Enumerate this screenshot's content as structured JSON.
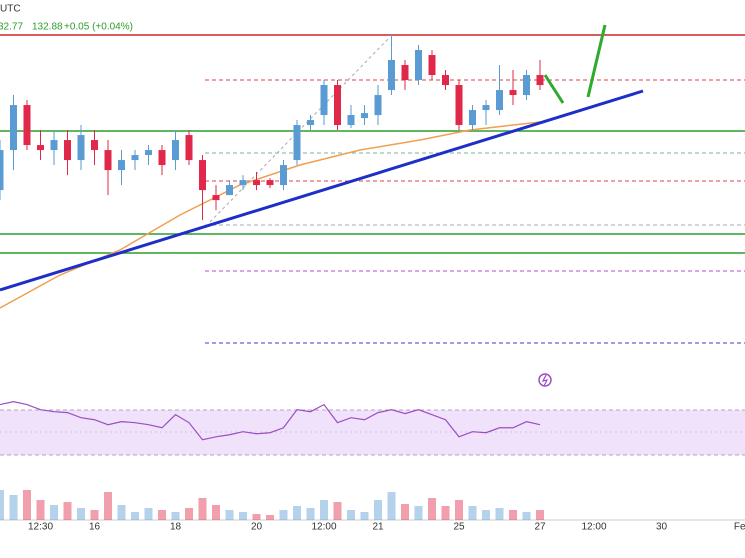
{
  "chart_data": {
    "type": "candlestick",
    "annotations": [
      "UTC",
      "32.77",
      "132.88",
      "+0.05 (+0.04%)"
    ],
    "categories": [
      null,
      null,
      null,
      "12:30",
      null,
      null,
      null,
      "16",
      null,
      null,
      null,
      null,
      null,
      "18",
      null,
      null,
      null,
      null,
      null,
      "20",
      null,
      null,
      null,
      null,
      "12:00",
      null,
      null,
      null,
      "21",
      null,
      null,
      null,
      null,
      null,
      "25",
      null,
      null,
      null,
      null,
      null,
      "27",
      null,
      null,
      null,
      "12:00",
      null,
      null,
      null,
      null,
      "30",
      null,
      null,
      null,
      null,
      null,
      "Feb"
    ],
    "open": [
      132.136,
      132.36,
      132.612,
      132.388,
      132.36,
      132.416,
      132.304,
      132.416,
      132.36,
      132.248,
      132.304,
      132.332,
      132.36,
      132.304,
      132.444,
      132.304,
      132.108,
      132.108,
      132.164,
      132.192,
      132.192,
      132.164,
      132.304,
      132.5,
      132.556,
      132.724,
      132.5,
      132.539,
      132.556,
      132.696,
      132.836,
      132.752,
      132.892,
      132.78,
      132.724,
      132.5,
      132.584,
      132.584,
      132.696,
      132.668,
      132.78,
      null,
      null,
      null,
      null,
      null,
      null,
      null,
      null,
      null,
      null,
      null,
      null,
      null,
      null,
      null
    ],
    "high": [
      132.416,
      132.668,
      132.64,
      132.472,
      132.472,
      132.472,
      132.5,
      132.472,
      132.416,
      132.36,
      132.36,
      132.388,
      132.388,
      132.472,
      132.472,
      132.332,
      132.164,
      132.192,
      132.22,
      132.237,
      132.203,
      132.304,
      132.528,
      132.556,
      132.752,
      132.752,
      132.612,
      132.612,
      132.724,
      133.004,
      132.864,
      132.948,
      132.92,
      132.808,
      132.752,
      132.612,
      132.64,
      132.836,
      132.808,
      132.808,
      132.864,
      null,
      null,
      null,
      null,
      null,
      null,
      null,
      null,
      null,
      null,
      null,
      null,
      null,
      null,
      null
    ],
    "low": [
      132.08,
      132.248,
      132.36,
      132.304,
      132.276,
      132.22,
      132.248,
      132.276,
      132.108,
      132.164,
      132.248,
      132.276,
      132.22,
      132.248,
      132.276,
      131.968,
      132.024,
      132.108,
      132.136,
      132.136,
      132.147,
      132.136,
      132.276,
      132.472,
      132.5,
      132.472,
      132.483,
      132.5,
      132.5,
      132.668,
      132.696,
      132.724,
      132.752,
      132.696,
      132.472,
      132.472,
      132.5,
      132.556,
      132.612,
      132.64,
      132.696,
      null,
      null,
      null,
      null,
      null,
      null,
      null,
      null,
      null,
      null,
      null,
      null,
      null,
      null,
      null
    ],
    "close": [
      132.36,
      132.612,
      132.388,
      132.36,
      132.416,
      132.304,
      132.444,
      132.36,
      132.248,
      132.304,
      132.332,
      132.36,
      132.276,
      132.416,
      132.304,
      132.136,
      132.08,
      132.164,
      132.192,
      132.164,
      132.164,
      132.276,
      132.5,
      132.528,
      132.724,
      132.5,
      132.556,
      132.567,
      132.668,
      132.864,
      132.752,
      132.92,
      132.78,
      132.724,
      132.5,
      132.584,
      132.612,
      132.696,
      132.668,
      132.78,
      132.724,
      null,
      null,
      null,
      null,
      null,
      null,
      null,
      null,
      null,
      null,
      null,
      null,
      null,
      null,
      null
    ],
    "up_color": "#5a9bd4",
    "down_color": "#e0294a",
    "ylim": [
      131.0,
      133.2
    ],
    "volume": [
      30,
      25,
      30,
      20,
      15,
      18,
      12,
      10,
      28,
      15,
      8,
      12,
      10,
      8,
      12,
      22,
      15,
      10,
      8,
      6,
      5,
      10,
      14,
      12,
      20,
      18,
      10,
      8,
      20,
      28,
      16,
      14,
      22,
      14,
      20,
      14,
      10,
      12,
      10,
      8,
      10,
      null,
      null,
      null,
      null,
      null,
      null,
      null,
      null,
      null,
      null,
      null,
      null,
      null,
      null,
      null
    ],
    "volume_ylim": [
      0,
      40
    ],
    "rsi": [
      74.7,
      77.3,
      74.7,
      70.2,
      68.4,
      67.6,
      63.1,
      61.3,
      56.9,
      59.6,
      58.7,
      56.9,
      54.2,
      65.8,
      58.7,
      43.6,
      46.2,
      48.0,
      50.7,
      48.9,
      49.8,
      54.2,
      70.2,
      68.4,
      74.7,
      58.7,
      63.1,
      61.3,
      67.6,
      70.2,
      66.7,
      70.2,
      65.8,
      61.3,
      46.2,
      50.7,
      49.8,
      54.2,
      54.2,
      59.6,
      56.9,
      null,
      null,
      null,
      null,
      null,
      null,
      null,
      null,
      null,
      null,
      null,
      null,
      null,
      null,
      null
    ],
    "rsi_ylim": [
      0,
      100
    ],
    "rsi_color": "#9c4dc4"
  }
}
